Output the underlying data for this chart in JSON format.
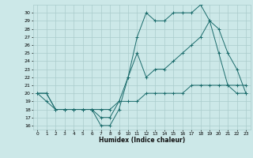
{
  "title": "",
  "xlabel": "Humidex (Indice chaleur)",
  "ylabel": "",
  "bg_color": "#cce8e8",
  "grid_color": "#aacccc",
  "line_color": "#1a6b6b",
  "xlim": [
    -0.5,
    23.5
  ],
  "ylim": [
    15.5,
    31.0
  ],
  "xtick_labels": [
    "0",
    "1",
    "2",
    "3",
    "4",
    "5",
    "6",
    "7",
    "8",
    "9",
    "10",
    "11",
    "12",
    "13",
    "14",
    "15",
    "16",
    "17",
    "18",
    "19",
    "20",
    "21",
    "22",
    "23"
  ],
  "xtick_vals": [
    0,
    1,
    2,
    3,
    4,
    5,
    6,
    7,
    8,
    9,
    10,
    11,
    12,
    13,
    14,
    15,
    16,
    17,
    18,
    19,
    20,
    21,
    22,
    23
  ],
  "ytick_vals": [
    16,
    17,
    18,
    19,
    20,
    21,
    22,
    23,
    24,
    25,
    26,
    27,
    28,
    29,
    30
  ],
  "line1_x": [
    0,
    1,
    2,
    3,
    4,
    5,
    6,
    7,
    8,
    9,
    10,
    11,
    12,
    13,
    14,
    15,
    16,
    17,
    18,
    19,
    20,
    21,
    22,
    23
  ],
  "line1_y": [
    20,
    20,
    18,
    18,
    18,
    18,
    18,
    16,
    16,
    18,
    22,
    27,
    30,
    29,
    29,
    30,
    30,
    30,
    31,
    29,
    28,
    25,
    23,
    20
  ],
  "line2_x": [
    0,
    1,
    2,
    3,
    4,
    5,
    6,
    7,
    8,
    9,
    10,
    11,
    12,
    13,
    14,
    15,
    16,
    17,
    18,
    19,
    20,
    21,
    22,
    23
  ],
  "line2_y": [
    20,
    20,
    18,
    18,
    18,
    18,
    18,
    17,
    17,
    19,
    22,
    25,
    22,
    23,
    23,
    24,
    25,
    26,
    27,
    29,
    25,
    21,
    20,
    20
  ],
  "line3_x": [
    0,
    1,
    2,
    3,
    4,
    5,
    6,
    7,
    8,
    9,
    10,
    11,
    12,
    13,
    14,
    15,
    16,
    17,
    18,
    19,
    20,
    21,
    22,
    23
  ],
  "line3_y": [
    20,
    19,
    18,
    18,
    18,
    18,
    18,
    18,
    18,
    19,
    19,
    19,
    20,
    20,
    20,
    20,
    20,
    21,
    21,
    21,
    21,
    21,
    21,
    21
  ]
}
